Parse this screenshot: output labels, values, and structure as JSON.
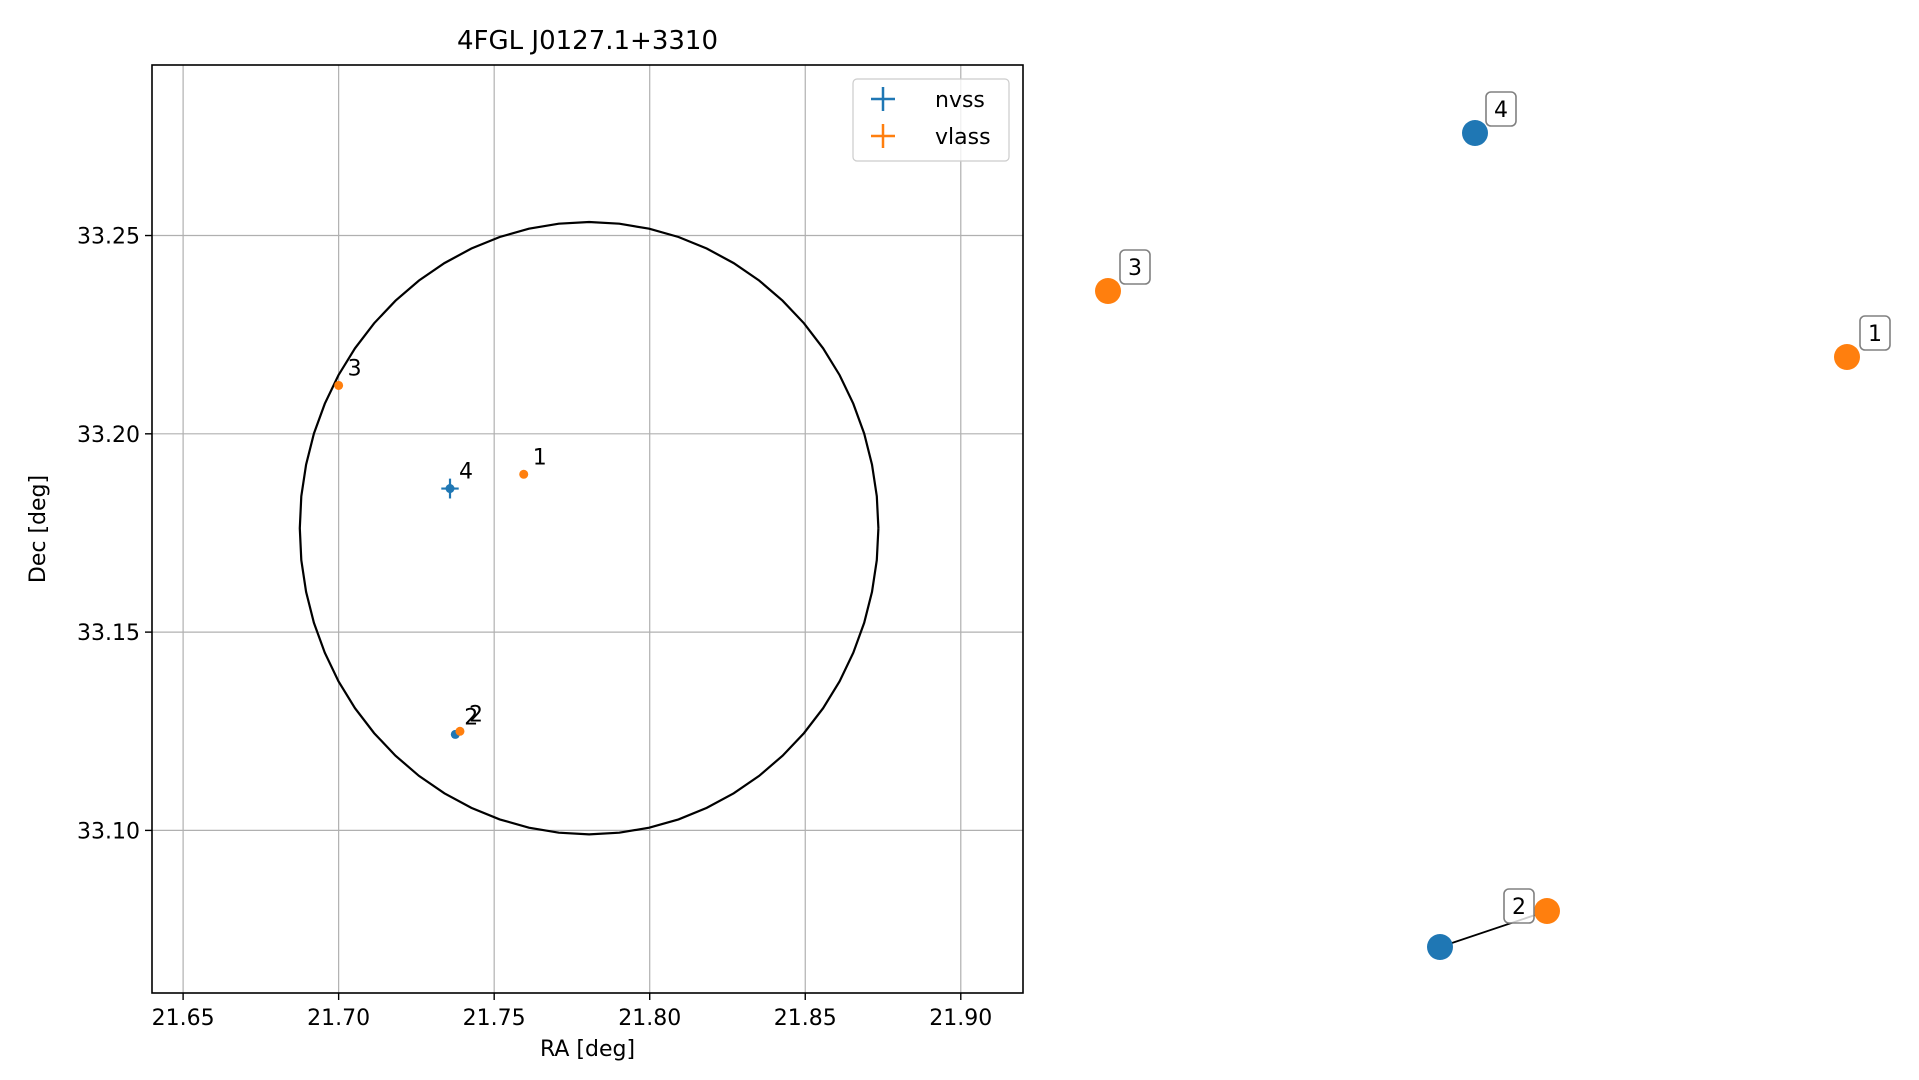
{
  "chart_data": {
    "type": "scatter",
    "title": "4FGL J0127.1+3310",
    "xlabel": "RA [deg]",
    "ylabel": "Dec [deg]",
    "xlim": [
      21.64,
      21.92
    ],
    "ylim": [
      33.059,
      33.293
    ],
    "grid": true,
    "legend_position": "top-right",
    "x_ticks": [
      "21.65",
      "21.70",
      "21.75",
      "21.80",
      "21.85",
      "21.90"
    ],
    "x_tick_values": [
      21.65,
      21.7,
      21.75,
      21.8,
      21.85,
      21.9
    ],
    "y_ticks": [
      "33.10",
      "33.15",
      "33.20",
      "33.25"
    ],
    "y_tick_values": [
      33.1,
      33.15,
      33.2,
      33.25
    ],
    "ellipse": {
      "ra": 21.7805,
      "dec": 33.1762,
      "r_ra": 0.093,
      "r_dec": 0.0772
    },
    "series": [
      {
        "name": "nvss",
        "color": "#1f77b4",
        "points": [
          {
            "label": "4",
            "ra": 21.7358,
            "dec": 33.1862,
            "err_ra": 0.0028,
            "err_dec": 0.0025
          },
          {
            "label": "2",
            "ra": 21.7375,
            "dec": 33.1242,
            "err_ra": 0.0005,
            "err_dec": 0.0005
          }
        ]
      },
      {
        "name": "vlass",
        "color": "#ff7f0e",
        "points": [
          {
            "label": "1",
            "ra": 21.7595,
            "dec": 33.1898,
            "err_ra": 0.0003,
            "err_dec": 0.0003
          },
          {
            "label": "3",
            "ra": 21.7,
            "dec": 33.2122,
            "err_ra": 0.0003,
            "err_dec": 0.0003
          },
          {
            "label": "2",
            "ra": 21.739,
            "dec": 33.125,
            "err_ra": 0.0003,
            "err_dec": 0.0003
          }
        ]
      }
    ],
    "side_panel": {
      "points": [
        {
          "label": "4",
          "series": "nvss"
        },
        {
          "label": "3",
          "series": "vlass"
        },
        {
          "label": "1",
          "series": "vlass"
        },
        {
          "label": "2",
          "series": "nvss"
        },
        {
          "label": "2",
          "series": "vlass"
        }
      ]
    }
  }
}
